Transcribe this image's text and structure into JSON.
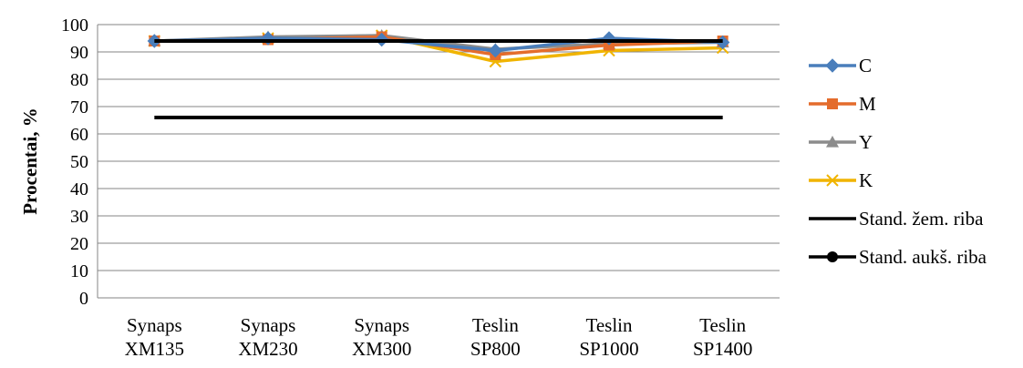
{
  "chart_data": {
    "type": "line",
    "title": "",
    "xlabel": "",
    "ylabel": "Procentai, %",
    "ylim": [
      0,
      100
    ],
    "yticks": [
      "0",
      "10",
      "20",
      "30",
      "40",
      "50",
      "60",
      "70",
      "80",
      "90",
      "100"
    ],
    "categories": [
      [
        "Synaps",
        "XM135"
      ],
      [
        "Synaps",
        "XM230"
      ],
      [
        "Synaps",
        "XM300"
      ],
      [
        "Teslin",
        "SP800"
      ],
      [
        "Teslin",
        "SP1000"
      ],
      [
        "Teslin",
        "SP1400"
      ]
    ],
    "grid": "horizontal",
    "legend_position": "right",
    "series": [
      {
        "name": "C",
        "color": "#4A7EBB",
        "marker": "diamond",
        "values": [
          94.0,
          95.0,
          94.5,
          90.5,
          95.0,
          93.5
        ]
      },
      {
        "name": "M",
        "color": "#E46C2C",
        "marker": "square",
        "values": [
          94.0,
          94.5,
          95.5,
          89.0,
          92.5,
          94.0
        ]
      },
      {
        "name": "Y",
        "color": "#8C8C8C",
        "marker": "triangle",
        "values": [
          94.0,
          95.5,
          96.0,
          91.0,
          93.0,
          93.5
        ]
      },
      {
        "name": "K",
        "color": "#F0B400",
        "marker": "x",
        "values": [
          94.0,
          95.0,
          96.0,
          86.5,
          90.5,
          91.5
        ]
      },
      {
        "name": "Stand. žem. riba",
        "color": "#000000",
        "marker": "none",
        "values": [
          66,
          66,
          66,
          66,
          66,
          66
        ]
      },
      {
        "name": "Stand. aukš. riba",
        "color": "#000000",
        "marker": "circle",
        "values": [
          94,
          94,
          94,
          94,
          94,
          94
        ]
      }
    ]
  }
}
